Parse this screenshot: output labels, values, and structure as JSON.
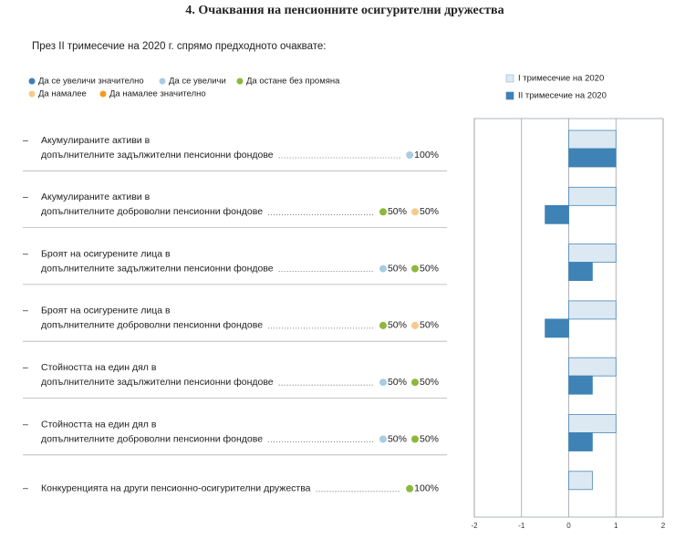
{
  "header": {
    "title": "4.   Очаквания на пенсионните осигурителни дружества",
    "subtitle": "През II тримесечие на 2020 г. спрямо предходното очаквате:"
  },
  "legend": [
    {
      "label": "Да се увеличи значително",
      "color": "#3d7fb6"
    },
    {
      "label": "Да се увеличи",
      "color": "#a9cce3"
    },
    {
      "label": "Да остане без промяна",
      "color": "#8db83a"
    },
    {
      "label": "Да намалее",
      "color": "#f9c98c"
    },
    {
      "label": "Да намалее значително",
      "color": "#f39a1e"
    }
  ],
  "rows": [
    {
      "lines": [
        "Акумулираните активи в",
        "допълнителните задължителни пенсионни фондове"
      ],
      "responses": [
        {
          "color": "#a9cce3",
          "share": "100%"
        }
      ]
    },
    {
      "lines": [
        "Акумулираните активи в",
        "допълнителните доброволни пенсионни фондове"
      ],
      "responses": [
        {
          "color": "#8db83a",
          "share": "50%"
        },
        {
          "color": "#f9c98c",
          "share": "50%"
        }
      ]
    },
    {
      "lines": [
        "Броят на осигурените лица в",
        "допълнителните задължителни пенсионни фондове"
      ],
      "responses": [
        {
          "color": "#a9cce3",
          "share": "50%"
        },
        {
          "color": "#8db83a",
          "share": "50%"
        }
      ]
    },
    {
      "lines": [
        "Броят на осигурените лица в",
        "допълнителните доброволни пенсионни фондове"
      ],
      "responses": [
        {
          "color": "#8db83a",
          "share": "50%"
        },
        {
          "color": "#f9c98c",
          "share": "50%"
        }
      ]
    },
    {
      "lines": [
        "Стойността на един дял в",
        "допълнителните задължителни пенсионни фондове"
      ],
      "responses": [
        {
          "color": "#a9cce3",
          "share": "50%"
        },
        {
          "color": "#8db83a",
          "share": "50%"
        }
      ]
    },
    {
      "lines": [
        "Стойността на един дял в",
        "допълнителните доброволни пенсионни фондове"
      ],
      "responses": [
        {
          "color": "#a9cce3",
          "share": "50%"
        },
        {
          "color": "#8db83a",
          "share": "50%"
        }
      ]
    },
    {
      "lines": [
        "Конкуренцията на други пенсионно-осигурителни дружества"
      ],
      "responses": [
        {
          "color": "#8db83a",
          "share": "100%"
        }
      ]
    }
  ],
  "chart_data": {
    "type": "bar",
    "orientation": "horizontal",
    "xlim": [
      -2,
      2
    ],
    "xticks": [
      -2,
      -1,
      0,
      1,
      2
    ],
    "grid": true,
    "series": [
      {
        "name": "I тримесечие на 2020",
        "color": "#dce9f2",
        "values": [
          1,
          1,
          1,
          1,
          1,
          1,
          0.5
        ]
      },
      {
        "name": "II тримесечие на 2020",
        "color": "#3f82b5",
        "values": [
          1,
          -0.5,
          0.5,
          -0.5,
          0.5,
          0.5,
          null
        ]
      }
    ]
  }
}
